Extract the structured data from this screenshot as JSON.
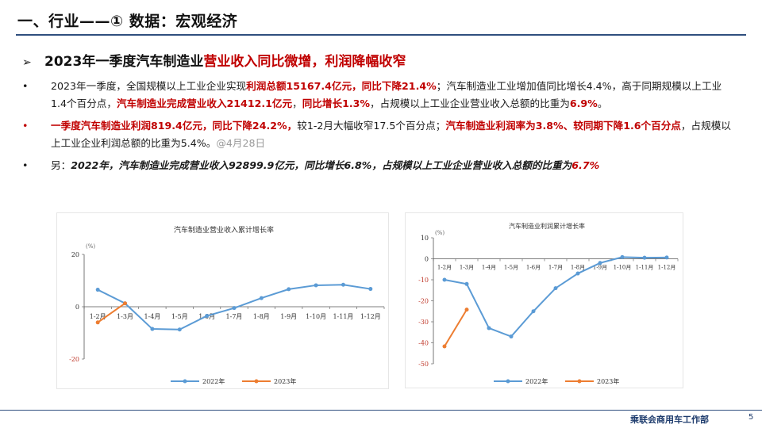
{
  "header": {
    "title": "一、行业——① 数据：宏观经济"
  },
  "subhead": {
    "prefix": "2023年一季度汽车制造业",
    "highlight": "营业收入同比微增，利润降幅收窄"
  },
  "bullets": {
    "b1": {
      "p1": "2023年一季度，全国规模以上工业企业实现",
      "r1": "利润总额15167.4亿元，同比下降21.4%",
      "p2": "；汽车制造业工业增加值同比增长4.4%，高于同期规模以上工业1.4个百分点，",
      "r2": "汽车制造业完成营业收入21412.1亿元",
      "p3": "，",
      "r3": "同比增长1.3%",
      "p4": "，占规模以上工业企业营业收入总额的比重为",
      "r4": "6.9%",
      "p5": "。"
    },
    "b2": {
      "r1": "一季度汽车制造业利润819.4亿元，同比下降24.2%，",
      "p1": "较1-2月大幅收窄17.5个百分点；",
      "r2": "汽车制造业利润率为3.8%、较同期下降1.6个百分点",
      "p2": "，占规模以上工业企业利润总额的比重为5.4%。",
      "note": "@4月28日"
    },
    "b3": {
      "p1": "另：",
      "i1": "2022年，汽车制造业完成营业收入92899.9亿元，同比增长6.8%，占规模以上工业企业营业收入总额的比重为",
      "r1": "6.7%"
    }
  },
  "chart_data": [
    {
      "type": "line",
      "title": "汽车制造业营业收入累计增长率",
      "ylabel": "(%)",
      "categories": [
        "1-2月",
        "1-3月",
        "1-4月",
        "1-5月",
        "1-6月",
        "1-7月",
        "1-8月",
        "1-9月",
        "1-10月",
        "1-11月",
        "1-12月"
      ],
      "yticks": [
        20,
        0,
        -20
      ],
      "ylim": [
        -20,
        20
      ],
      "series": [
        {
          "name": "2022年",
          "color": "#5b9bd5",
          "values": [
            6.5,
            1.3,
            -8.5,
            -8.7,
            -3.5,
            -0.5,
            3.3,
            6.7,
            8.2,
            8.4,
            6.8
          ]
        },
        {
          "name": "2023年",
          "color": "#ed7d31",
          "values": [
            -6.0,
            1.3,
            null,
            null,
            null,
            null,
            null,
            null,
            null,
            null,
            null
          ]
        }
      ],
      "legend": "bottom"
    },
    {
      "type": "line",
      "title": "汽车制造业利润累计增长率",
      "ylabel": "(%)",
      "categories": [
        "1-2月",
        "1-3月",
        "1-4月",
        "1-5月",
        "1-6月",
        "1-7月",
        "1-8月",
        "1-9月",
        "1-10月",
        "1-11月",
        "1-12月"
      ],
      "yticks": [
        10,
        0,
        -10,
        -20,
        -30,
        -40,
        -50
      ],
      "ylim": [
        -50,
        10
      ],
      "series": [
        {
          "name": "2022年",
          "color": "#5b9bd5",
          "values": [
            -10.0,
            -12.0,
            -33.0,
            -37.0,
            -25.0,
            -14.0,
            -7.0,
            -2.0,
            0.8,
            0.5,
            0.6
          ]
        },
        {
          "name": "2023年",
          "color": "#ed7d31",
          "values": [
            -41.7,
            -24.2,
            null,
            null,
            null,
            null,
            null,
            null,
            null,
            null,
            null
          ]
        }
      ],
      "legend": "bottom"
    }
  ],
  "footer": {
    "dept": "乘联会商用车工作部",
    "page": "5"
  }
}
